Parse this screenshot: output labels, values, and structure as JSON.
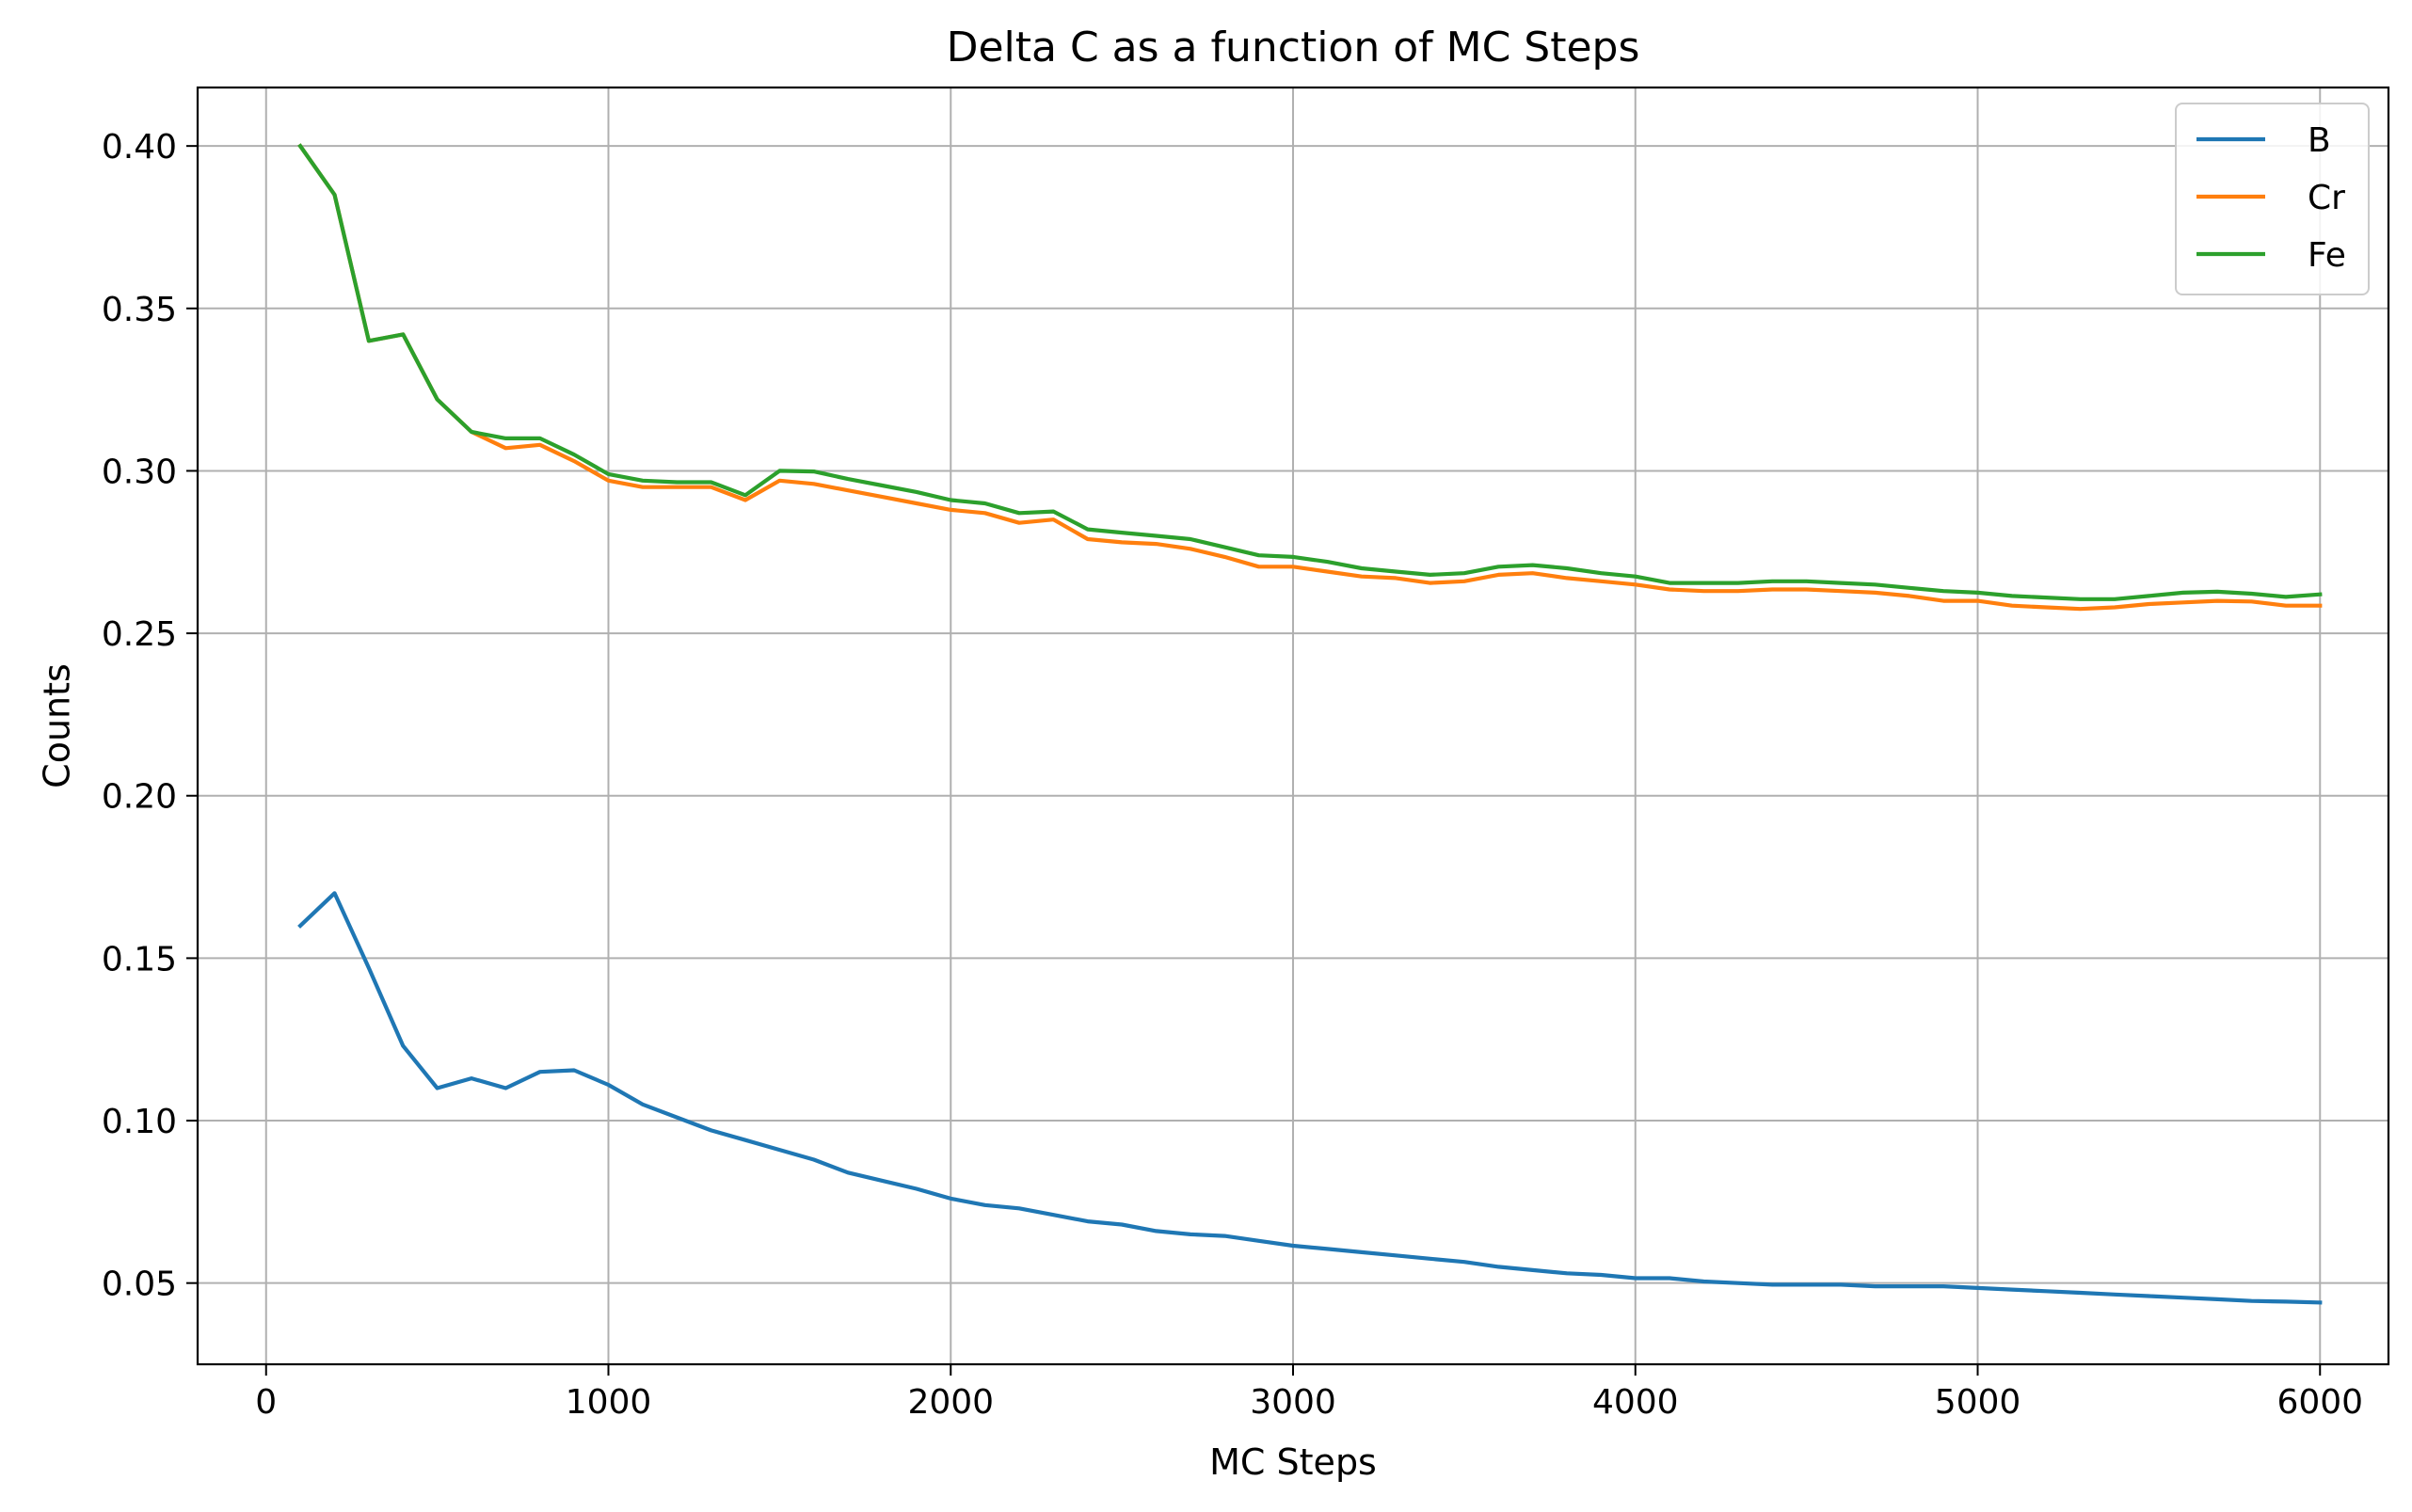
{
  "chart_data": {
    "type": "line",
    "title": "Delta C as a function of MC Steps",
    "xlabel": "MC Steps",
    "ylabel": "Counts",
    "xlim": [
      -200,
      6200
    ],
    "ylim": [
      0.025,
      0.418
    ],
    "xticks": [
      0,
      1000,
      2000,
      3000,
      4000,
      5000,
      6000
    ],
    "yticks": [
      0.05,
      0.1,
      0.15,
      0.2,
      0.25,
      0.3,
      0.35,
      0.4
    ],
    "xtick_labels": [
      "0",
      "1000",
      "2000",
      "3000",
      "4000",
      "5000",
      "6000"
    ],
    "ytick_labels": [
      "0.05",
      "0.10",
      "0.15",
      "0.20",
      "0.25",
      "0.30",
      "0.35",
      "0.40"
    ],
    "grid": true,
    "legend_position": "top-right",
    "x": [
      100,
      200,
      300,
      400,
      500,
      600,
      700,
      800,
      900,
      1000,
      1100,
      1200,
      1300,
      1400,
      1500,
      1600,
      1700,
      1800,
      1900,
      2000,
      2100,
      2200,
      2300,
      2400,
      2500,
      2600,
      2700,
      2800,
      2900,
      3000,
      3100,
      3200,
      3300,
      3400,
      3500,
      3600,
      3700,
      3800,
      3900,
      4000,
      4100,
      4200,
      4300,
      4400,
      4500,
      4600,
      4700,
      4800,
      4900,
      5000,
      5100,
      5200,
      5300,
      5400,
      5500,
      5600,
      5700,
      5800,
      5900,
      6000
    ],
    "series": [
      {
        "name": "B",
        "color": "#1f77b4",
        "values": [
          0.16,
          0.17,
          0.147,
          0.123,
          0.11,
          0.113,
          0.11,
          0.115,
          0.1155,
          0.111,
          0.105,
          0.101,
          0.097,
          0.094,
          0.091,
          0.088,
          0.084,
          0.0815,
          0.079,
          0.076,
          0.074,
          0.073,
          0.071,
          0.069,
          0.068,
          0.066,
          0.065,
          0.0645,
          0.063,
          0.0615,
          0.0605,
          0.0595,
          0.0585,
          0.0575,
          0.0565,
          0.055,
          0.054,
          0.053,
          0.0525,
          0.0515,
          0.0515,
          0.0505,
          0.05,
          0.0495,
          0.0495,
          0.0495,
          0.049,
          0.049,
          0.049,
          0.0485,
          0.048,
          0.0475,
          0.047,
          0.0465,
          0.046,
          0.0455,
          0.045,
          0.0445,
          0.0443,
          0.044
        ]
      },
      {
        "name": "Cr",
        "color": "#ff7f0e",
        "values": [
          0.4,
          0.385,
          0.34,
          0.342,
          0.322,
          0.312,
          0.307,
          0.308,
          0.303,
          0.297,
          0.295,
          0.295,
          0.295,
          0.291,
          0.297,
          0.296,
          0.294,
          0.292,
          0.29,
          0.288,
          0.287,
          0.284,
          0.285,
          0.279,
          0.278,
          0.2775,
          0.276,
          0.2735,
          0.2705,
          0.2705,
          0.269,
          0.2675,
          0.267,
          0.2655,
          0.266,
          0.268,
          0.2685,
          0.267,
          0.266,
          0.265,
          0.2635,
          0.263,
          0.263,
          0.2635,
          0.2635,
          0.263,
          0.2625,
          0.2615,
          0.26,
          0.26,
          0.2585,
          0.258,
          0.2575,
          0.258,
          0.259,
          0.2595,
          0.26,
          0.2598,
          0.2585,
          0.2585
        ]
      },
      {
        "name": "Fe",
        "color": "#2ca02c",
        "values": [
          0.4,
          0.385,
          0.34,
          0.342,
          0.322,
          0.312,
          0.31,
          0.31,
          0.305,
          0.299,
          0.297,
          0.2965,
          0.2965,
          0.2925,
          0.3,
          0.2998,
          0.2975,
          0.2955,
          0.2935,
          0.291,
          0.29,
          0.287,
          0.2875,
          0.282,
          0.281,
          0.28,
          0.279,
          0.2765,
          0.274,
          0.2735,
          0.272,
          0.27,
          0.269,
          0.268,
          0.2685,
          0.2705,
          0.271,
          0.27,
          0.2685,
          0.2675,
          0.2655,
          0.2655,
          0.2655,
          0.266,
          0.266,
          0.2655,
          0.265,
          0.264,
          0.263,
          0.2625,
          0.2615,
          0.261,
          0.2605,
          0.2605,
          0.2615,
          0.2625,
          0.2628,
          0.2622,
          0.2612,
          0.262
        ]
      }
    ]
  }
}
